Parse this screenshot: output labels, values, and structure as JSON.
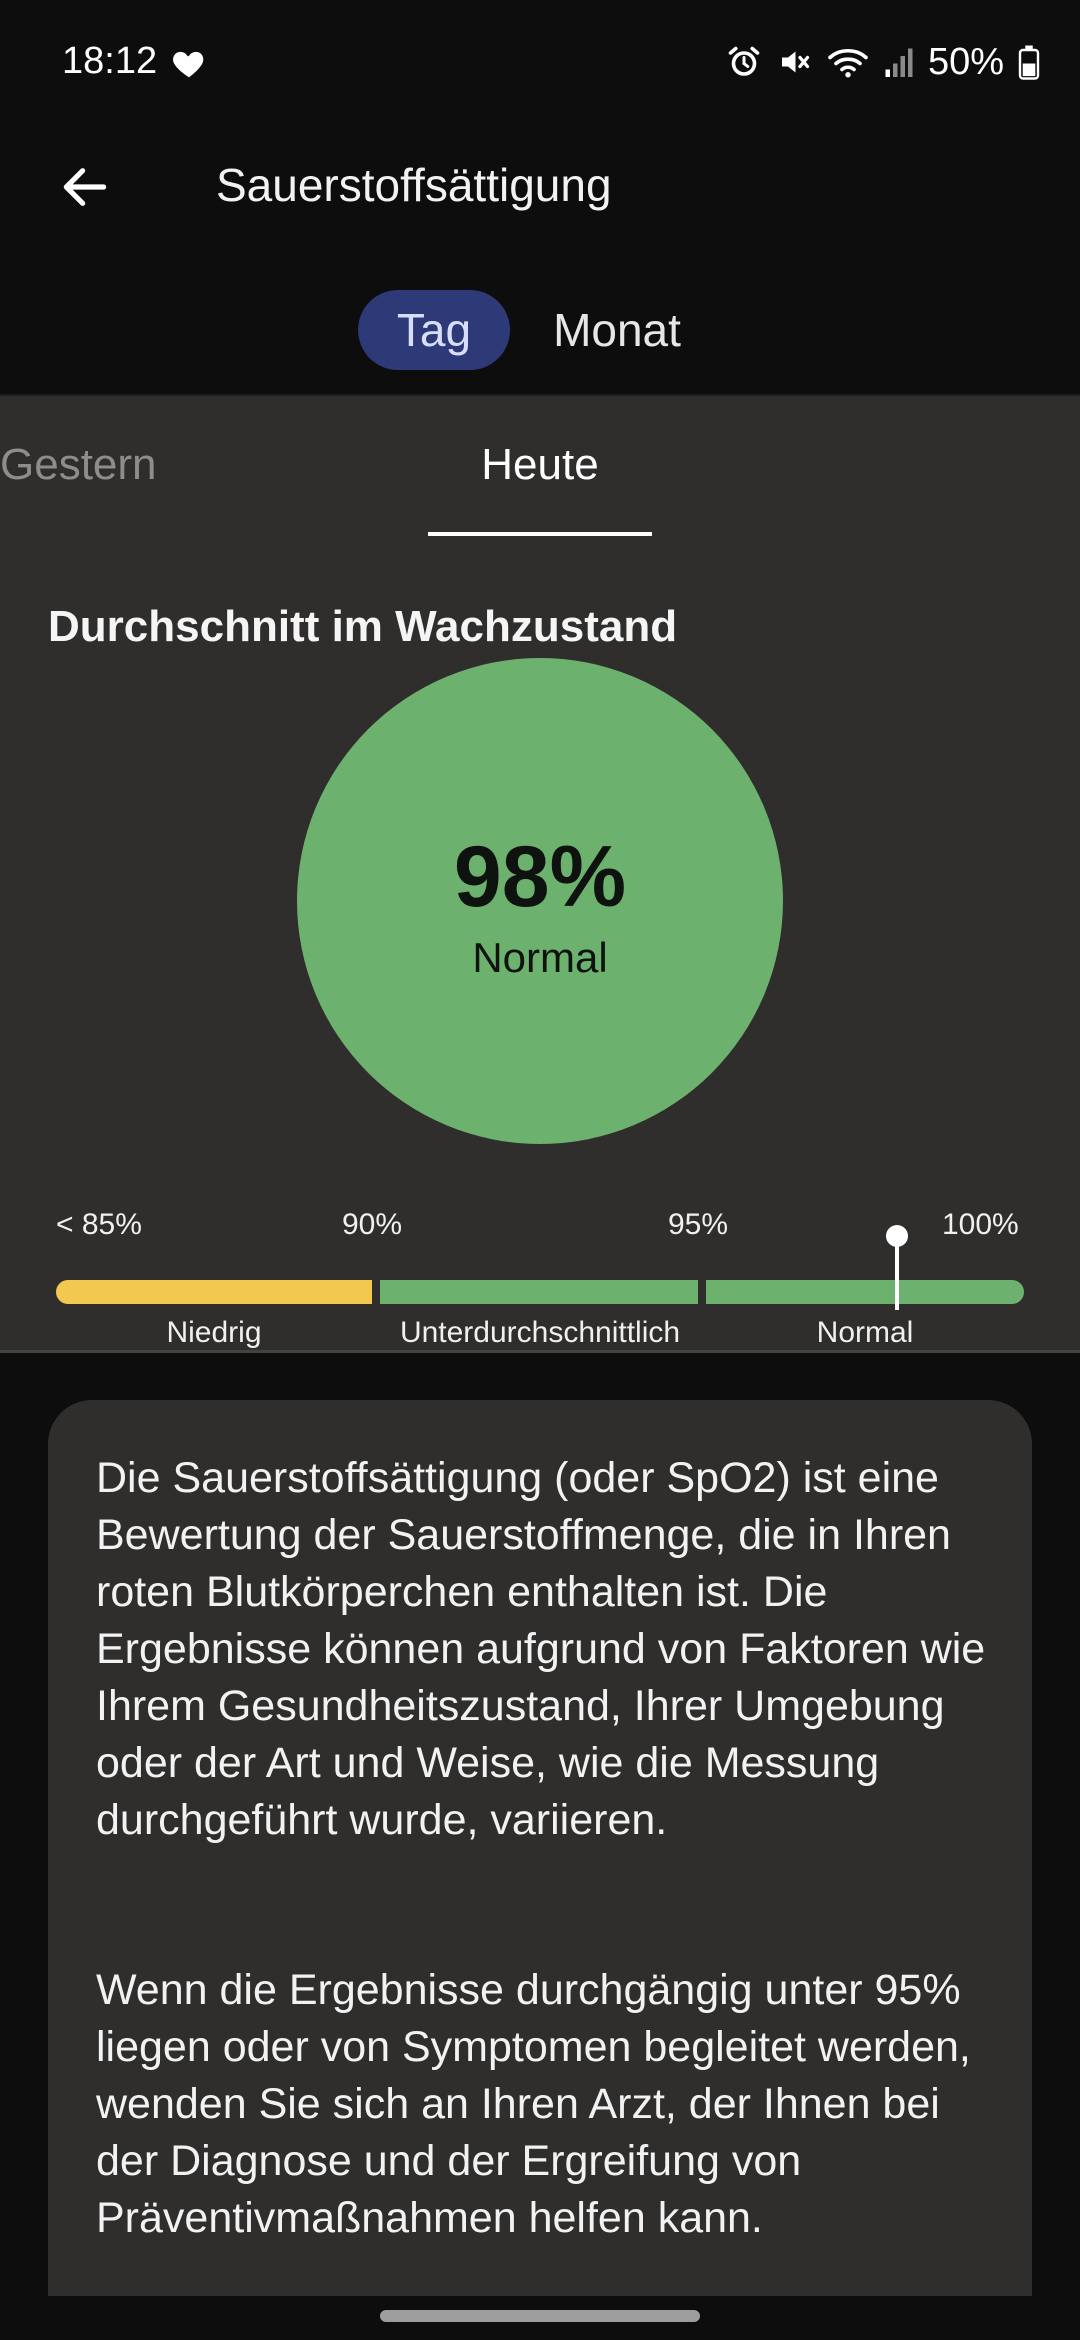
{
  "status_bar": {
    "time": "18:12",
    "battery": "50%",
    "icons": [
      "heart-icon",
      "alarm-icon",
      "mute-icon",
      "wifi-icon",
      "signal-icon",
      "battery-icon"
    ]
  },
  "app_bar": {
    "title": "Sauerstoffsättigung",
    "back_icon": "arrow-left-icon"
  },
  "period_toggle": {
    "day": "Tag",
    "month": "Monat",
    "selected": "Tag"
  },
  "day_tabs": {
    "yesterday": "Gestern",
    "today": "Heute",
    "selected": "Heute"
  },
  "average": {
    "heading": "Durchschnitt im Wachzustand",
    "value": "98%",
    "status": "Normal"
  },
  "scale": {
    "ticks": [
      "< 85%",
      "90%",
      "95%",
      "100%"
    ],
    "zones": [
      "Niedrig",
      "Unterdurchschnittlich",
      "Normal"
    ],
    "marker_value": 98,
    "colors": {
      "low": "#f3c84e",
      "below_avg": "#6db16e",
      "normal": "#6db16e",
      "circle": "#6db16e"
    }
  },
  "info": {
    "paragraph1": "Die Sauerstoffsättigung (oder SpO2) ist eine Bewertung der Sauerstoffmenge, die in Ihren roten Blutkörperchen enthalten ist. Die Ergebnisse können aufgrund von Faktoren wie Ihrem Gesundheitszustand, Ihrer Umgebung oder der Art und Weise, wie die Messung durchgeführt wurde, variieren.",
    "paragraph2": "Wenn die Ergebnisse durchgängig unter 95% liegen oder von Symptomen begleitet werden, wenden Sie sich an Ihren Arzt, der Ihnen bei der Diagnose und der Ergreifung von Präventivmaßnahmen helfen kann."
  }
}
